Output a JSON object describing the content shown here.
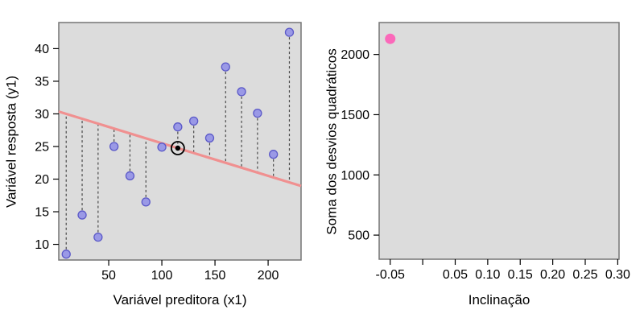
{
  "figure": {
    "background": "#ffffff",
    "description": "Two-panel least squares regression demo"
  },
  "colors": {
    "panel_bg": "#dcdcdc",
    "panel_border": "#757575",
    "point_fill": "#9a99e6",
    "point_stroke": "#5b59c8",
    "fit_line": "#f09090",
    "residual": "#4a4a4a",
    "centroid": "#000000",
    "ss_point": "#fb69ba",
    "tick_color": "#000000",
    "text_color": "#000000"
  },
  "chart_data": [
    {
      "id": "scatter-panel",
      "type": "scatter",
      "title": "",
      "xlabel": "Variável preditora (x1)",
      "ylabel": "Variável resposta (y1)",
      "xlim": [
        3,
        231
      ],
      "ylim": [
        7.6,
        44
      ],
      "xticks": [
        50,
        100,
        150,
        200
      ],
      "yticks": [
        10,
        15,
        20,
        25,
        30,
        35,
        40
      ],
      "grid": false,
      "legend": "none",
      "x": [
        10,
        25,
        40,
        55,
        70,
        85,
        100,
        115,
        130,
        145,
        160,
        175,
        190,
        205,
        220
      ],
      "y": [
        8.5,
        14.5,
        11.1,
        25.0,
        20.5,
        16.5,
        24.9,
        28.0,
        28.9,
        26.3,
        37.2,
        33.4,
        30.1,
        23.8,
        42.5
      ],
      "fit_line": {
        "slope": -0.05,
        "intercept": 30.5
      },
      "centroid": {
        "x": 115,
        "y": 24.75
      },
      "residuals": true
    },
    {
      "id": "ss-panel",
      "type": "scatter",
      "title": "",
      "xlabel": "Inclinação",
      "ylabel": "Soma dos desvios quadráticos",
      "xlim": [
        -0.067,
        0.302
      ],
      "ylim": [
        300,
        2265
      ],
      "xticks": [
        -0.05,
        0,
        0.05,
        0.1,
        0.15,
        0.2,
        0.25,
        0.3
      ],
      "xtick_labels": [
        "-0.05",
        "",
        "0.05",
        "0.10",
        "0.15",
        "0.20",
        "0.25",
        "0.30"
      ],
      "yticks": [
        500,
        1000,
        1500,
        2000
      ],
      "grid": false,
      "legend": "none",
      "x": [
        -0.05
      ],
      "y": [
        2130
      ]
    }
  ]
}
